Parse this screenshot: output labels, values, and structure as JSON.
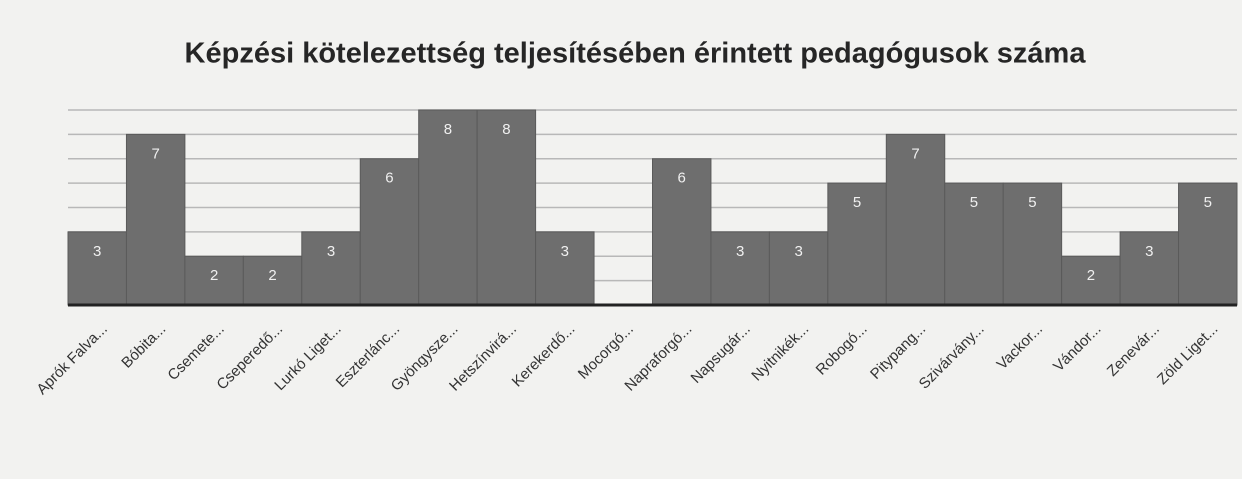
{
  "chart_data": {
    "type": "bar",
    "title": "Képzési kötelezettség teljesítésében érintett pedagógusok száma",
    "categories": [
      "Aprók Falva...",
      "Bóbita...",
      "Csemete...",
      "Cseperedő...",
      "Lurkó Liget...",
      "Eszterlánc...",
      "Gyöngysze...",
      "Hetszínvirá...",
      "Kerekerdő...",
      "Mocorgó...",
      "Napraforgó...",
      "Napsugár...",
      "Nyitnikék...",
      "Robogó...",
      "Pitypang...",
      "Szivárvány...",
      "Vackor...",
      "Vándor...",
      "Zenevár...",
      "Zöld Liget..."
    ],
    "values": [
      3,
      7,
      2,
      2,
      3,
      6,
      8,
      8,
      3,
      0,
      6,
      3,
      3,
      5,
      7,
      5,
      5,
      2,
      3,
      5
    ],
    "value_labels": [
      "3",
      "7",
      "2",
      "2",
      "3",
      "6",
      "8",
      "8",
      "3",
      null,
      "6",
      "3",
      "3",
      "5",
      "7",
      "5",
      "5",
      "2",
      "3",
      "5"
    ],
    "color": "#6e6e6e",
    "ylim": [
      0,
      8
    ],
    "yticks": [
      0,
      1,
      2,
      3,
      4,
      5,
      6,
      7,
      8
    ],
    "grid": true
  }
}
